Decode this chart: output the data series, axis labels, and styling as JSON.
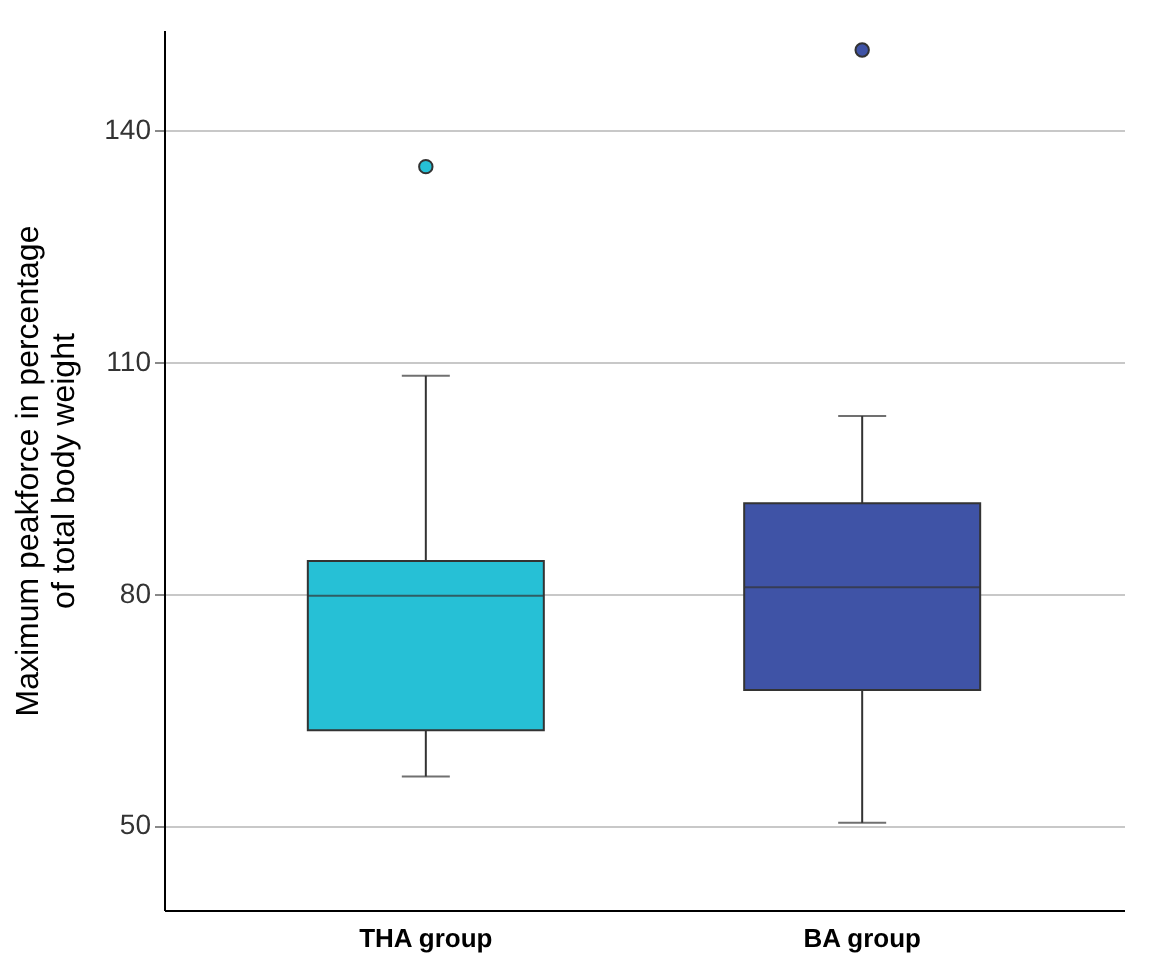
{
  "chart_data": {
    "type": "box",
    "ylabel": "Maximum peakforce in percentage of total body weight",
    "categories": [
      "THA group",
      "BA group"
    ],
    "colors": [
      "#26c0d6",
      "#3f53a6"
    ],
    "boxes": [
      {
        "low": 56.3,
        "q1": 62.3,
        "median": 79.7,
        "q3": 84.2,
        "high": 108.2,
        "outliers": [
          135.3
        ]
      },
      {
        "low": 50.3,
        "q1": 67.5,
        "median": 80.8,
        "q3": 91.7,
        "high": 103,
        "outliers": [
          150.4
        ]
      }
    ],
    "ylim": [
      39,
      153
    ],
    "yticks": [
      50,
      80,
      110,
      140
    ],
    "grid": "y"
  }
}
